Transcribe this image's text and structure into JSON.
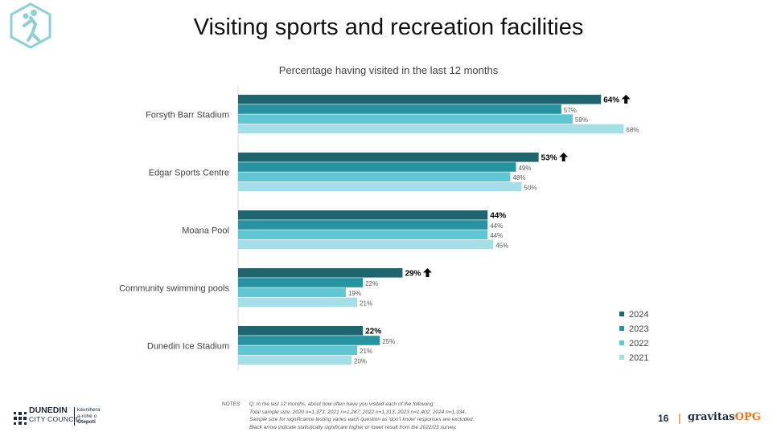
{
  "slide": {
    "title": "Visiting sports and recreation facilities",
    "page_number": "16"
  },
  "notes": {
    "label": "NOTES",
    "lines": [
      "Q: In the last 12 months, about how often have you visited each of the following:",
      "Total sample size: 2020 n=1,373; 2021 n=1,287; 2022 n=1,313; 2023 n=1,402; 2024 n=1,334.",
      "Sample size for significance testing varies each question as 'don't know' responses  are excluded.",
      "Black arrow indicate statistically significant higher or lower result from the 2022/23 survey."
    ]
  },
  "footer": {
    "council_name_line1": "DUNEDIN",
    "council_name_line2": "CITY COUNCIL",
    "council_maori_line1": "kaunihera",
    "council_maori_line2": "a-rohe o",
    "council_maori_line3": "Ōtepoti",
    "brand_separator": "|",
    "brand_main": "gravitas",
    "brand_accent": "OPG"
  },
  "colors": {
    "2024": "#1f6470",
    "2023": "#2893a0",
    "2022": "#5fc7d1",
    "2021": "#a5dfe5",
    "arrow": "#000000",
    "logo_hex": "#8fcfd6"
  },
  "icons": {
    "logo": "hexagon-basketball-player-icon",
    "significance": "up-arrow-icon",
    "council_logo": "dunedin-star-mark-icon"
  },
  "chart_data": {
    "type": "bar",
    "orientation": "horizontal",
    "title": "Percentage having visited in the last 12 months",
    "categories": [
      "Forsyth Barr Stadium",
      "Edgar Sports Centre",
      "Moana Pool",
      "Community swimming pools",
      "Dunedin Ice Stadium"
    ],
    "series": [
      {
        "name": "2024",
        "values": [
          64,
          53,
          44,
          29,
          22
        ],
        "labels": [
          "64%",
          "53%",
          "44%",
          "29%",
          "22%"
        ]
      },
      {
        "name": "2023",
        "values": [
          57,
          49,
          44,
          22,
          25
        ],
        "labels": [
          "57%",
          "49%",
          "44%",
          "22%",
          "25%"
        ]
      },
      {
        "name": "2022",
        "values": [
          59,
          48,
          44,
          19,
          21
        ],
        "labels": [
          "59%",
          "48%",
          "44%",
          "19%",
          "21%"
        ]
      },
      {
        "name": "2021",
        "values": [
          68,
          50,
          45,
          21,
          20
        ],
        "labels": [
          "68%",
          "50%",
          "45%",
          "21%",
          "20%"
        ]
      }
    ],
    "significant_up": [
      true,
      true,
      false,
      true,
      false
    ],
    "xlim": [
      0,
      100
    ],
    "legend_position": "right",
    "grid": false,
    "unit": "%"
  }
}
